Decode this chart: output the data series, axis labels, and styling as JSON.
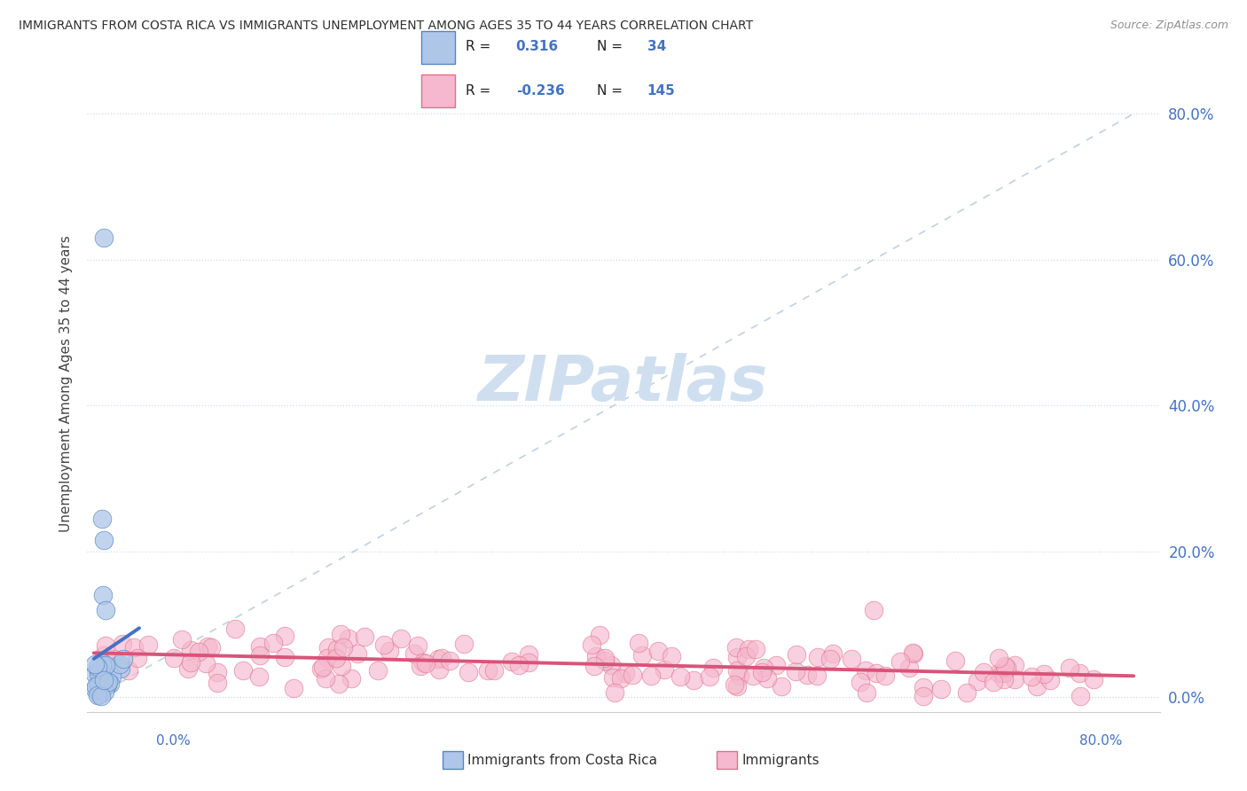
{
  "title": "IMMIGRANTS FROM COSTA RICA VS IMMIGRANTS UNEMPLOYMENT AMONG AGES 35 TO 44 YEARS CORRELATION CHART",
  "source": "Source: ZipAtlas.com",
  "ylabel": "Unemployment Among Ages 35 to 44 years",
  "ytick_vals": [
    0.0,
    0.2,
    0.4,
    0.6,
    0.8
  ],
  "ytick_labels": [
    "0.0%",
    "20.0%",
    "40.0%",
    "60.0%",
    "80.0%"
  ],
  "xlim": [
    -0.005,
    0.82
  ],
  "ylim": [
    -0.02,
    0.88
  ],
  "blue_fill": "#aec6e8",
  "blue_edge": "#5585c5",
  "pink_fill": "#f5b8ce",
  "pink_edge": "#e0708a",
  "blue_line": "#4472c4",
  "pink_line": "#d9547a",
  "diag_color": "#b8c8d8",
  "grid_color": "#d0d8e8",
  "tick_color": "#4472c4",
  "watermark_color": "#d0dff0",
  "legend_border": "#c0cce0",
  "source_color": "#909090",
  "title_color": "#303030"
}
